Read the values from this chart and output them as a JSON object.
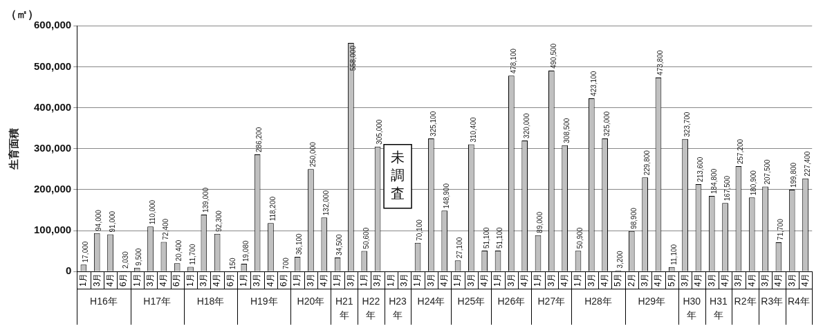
{
  "chart_data": {
    "type": "bar",
    "title": "（㎡）",
    "ylabel": "生育面積",
    "categories": [
      "1月",
      "3月",
      "4月",
      "6月",
      "1月",
      "3月",
      "4月",
      "6月",
      "1月",
      "3月",
      "4月",
      "6月",
      "1月",
      "3月",
      "4月",
      "6月",
      "1月",
      "3月",
      "4月",
      "1月",
      "3月",
      "1月",
      "3月",
      "1月",
      "3月",
      "1月",
      "3月",
      "4月",
      "1月",
      "3月",
      "4月",
      "1月",
      "3月",
      "4月",
      "1月",
      "3月",
      "4月",
      "1月",
      "3月",
      "4月",
      "5月",
      "2月",
      "3月",
      "4月",
      "5月",
      "3月",
      "4月",
      "3月",
      "4月",
      "3月",
      "4月",
      "3月",
      "4月",
      "3月",
      "4月"
    ],
    "values": [
      17000,
      94000,
      91000,
      2030,
      9500,
      110000,
      72400,
      20400,
      11700,
      139000,
      92300,
      150,
      19080,
      286200,
      118200,
      700,
      36100,
      250000,
      132000,
      34500,
      558000,
      50600,
      305000,
      null,
      null,
      70100,
      325100,
      148900,
      27100,
      310400,
      51100,
      51100,
      478100,
      320000,
      89000,
      490500,
      308500,
      50900,
      423100,
      325000,
      3200,
      98900,
      229800,
      473800,
      11100,
      323700,
      213600,
      184800,
      167500,
      257200,
      180900,
      207500,
      71700,
      199800,
      227400
    ],
    "value_labels": [
      "17,000",
      "94,000",
      "91,000",
      "2,030",
      "9,500",
      "110,000",
      "72,400",
      "20,400",
      "11,700",
      "139,000",
      "92,300",
      "150",
      "19,080",
      "286,200",
      "118,200",
      "700",
      "36,100",
      "250,000",
      "132,000",
      "34,500",
      "558,000",
      "50,600",
      "305,000",
      null,
      null,
      "70,100",
      "325,100",
      "148,900",
      "27,100",
      "310,400",
      "51,100",
      "51,100",
      "478,100",
      "320,000",
      "89,000",
      "490,500",
      "308,500",
      "50,900",
      "423,100",
      "325,000",
      "3,200",
      "98,900",
      "229,800",
      "473,800",
      "11,100",
      "323,700",
      "213,600",
      "184,800",
      "167,500",
      "257,200",
      "180,900",
      "207,500",
      "71,700",
      "199,800",
      "227,400"
    ],
    "color": "#c0c0c0",
    "ylim": [
      0,
      600000
    ],
    "yticks": [
      {
        "value": 0,
        "label": "0"
      },
      {
        "value": 100000,
        "label": "100,000"
      },
      {
        "value": 200000,
        "label": "200,000"
      },
      {
        "value": 300000,
        "label": "300,000"
      },
      {
        "value": 400000,
        "label": "400,000"
      },
      {
        "value": 500000,
        "label": "500,000"
      },
      {
        "value": 600000,
        "label": "600,000"
      }
    ],
    "grid": "y",
    "annotations": [
      "未調査",
      "H16年",
      "H17年",
      "H18年",
      "H19年",
      "H20年",
      "H21年",
      "H22年",
      "H23年",
      "H24年",
      "H25年",
      "H26年",
      "H27年",
      "H28年",
      "H29年",
      "H30年",
      "H31年",
      "R2年",
      "R3年",
      "R4年"
    ]
  }
}
